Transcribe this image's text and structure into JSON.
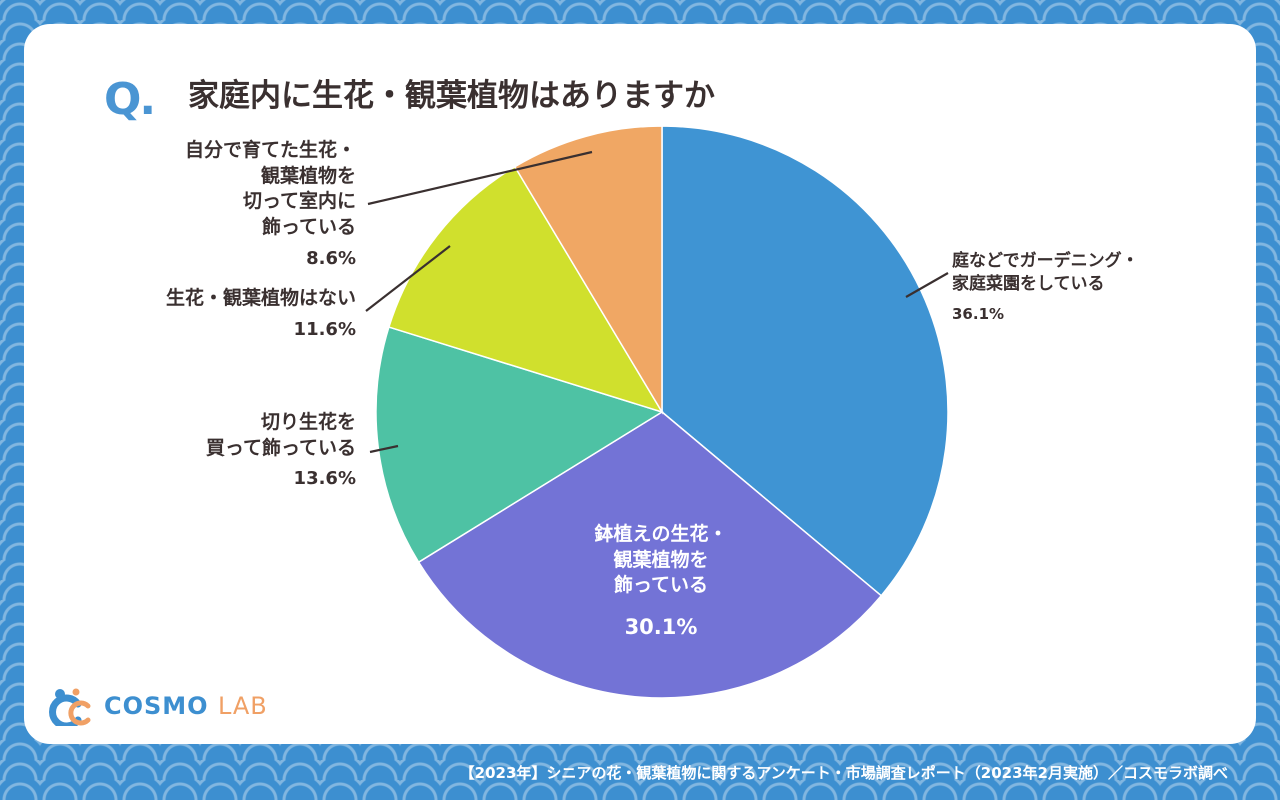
{
  "header": {
    "q_mark": "Q.",
    "title": "家庭内に生花・観葉植物はありますか"
  },
  "chart_data": {
    "type": "pie",
    "title": "家庭内に生花・観葉植物はありますか",
    "slices": [
      {
        "label": "庭などでガーデニング・家庭菜園をしている",
        "value": 36.1,
        "display": "36.1%",
        "color": "#3f94d3"
      },
      {
        "label": "鉢植えの生花・観葉植物を飾っている",
        "value": 30.1,
        "display": "30.1%",
        "color": "#7373d6"
      },
      {
        "label": "切り生花を買って飾っている",
        "value": 13.6,
        "display": "13.6%",
        "color": "#4ec2a4"
      },
      {
        "label": "生花・観葉植物はない",
        "value": 11.6,
        "display": "11.6%",
        "color": "#d0e02d"
      },
      {
        "label": "自分で育てた生花・観葉植物を切って室内に飾っている",
        "value": 8.6,
        "display": "8.6%",
        "color": "#f0a764"
      }
    ]
  },
  "labels": {
    "garden": {
      "lines": [
        "庭などでガーデニング・",
        "家庭菜園をしている"
      ],
      "pct": "36.1%"
    },
    "potted": {
      "lines": [
        "鉢植えの生花・",
        "観葉植物を",
        "飾っている"
      ],
      "pct": "30.1%"
    },
    "cut": {
      "lines": [
        "切り生花を",
        "買って飾っている"
      ],
      "pct": "13.6%"
    },
    "none": {
      "lines": [
        "生花・観葉植物はない"
      ],
      "pct": "11.6%"
    },
    "homegrown": {
      "lines": [
        "自分で育てた生花・",
        "観葉植物を",
        "切って室内に",
        "飾っている"
      ],
      "pct": "8.6%"
    }
  },
  "logo": {
    "main": "COSMO",
    "sub": "LAB"
  },
  "footer": {
    "source": "【2023年】シニアの花・観葉植物に関するアンケート・市場調査レポート（2023年2月実施）／コスモラボ調べ"
  }
}
